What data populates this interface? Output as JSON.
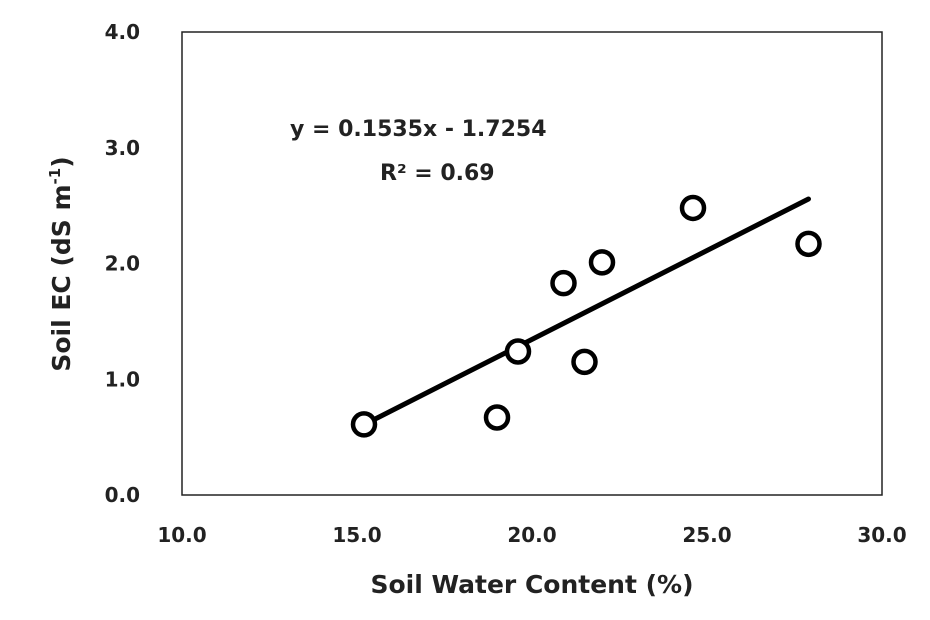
{
  "chart_data": {
    "type": "scatter",
    "xlabel": "Soil Water Content (%)",
    "ylabel_main": "Soil EC (dS m",
    "ylabel_sup": "-1",
    "ylabel_close": ")",
    "xlim": [
      10.0,
      30.0
    ],
    "ylim": [
      0.0,
      4.0
    ],
    "xticks": [
      "10.0",
      "15.0",
      "20.0",
      "25.0",
      "30.0"
    ],
    "yticks": [
      "0.0",
      "1.0",
      "2.0",
      "3.0",
      "4.0"
    ],
    "grid": false,
    "points": [
      {
        "x": 15.2,
        "y": 0.61
      },
      {
        "x": 19.0,
        "y": 0.67
      },
      {
        "x": 19.6,
        "y": 1.24
      },
      {
        "x": 20.9,
        "y": 1.83
      },
      {
        "x": 21.5,
        "y": 1.15
      },
      {
        "x": 22.0,
        "y": 2.01
      },
      {
        "x": 24.6,
        "y": 2.48
      },
      {
        "x": 27.9,
        "y": 2.17
      }
    ],
    "trendline": {
      "slope": 0.1535,
      "intercept": -1.7254,
      "x_start": 15.2,
      "x_end": 27.9
    },
    "equation": "y = 0.1535x - 1.7254",
    "r2_label": "R² = 0.69",
    "marker_color": "#000000",
    "line_color": "#000000"
  }
}
